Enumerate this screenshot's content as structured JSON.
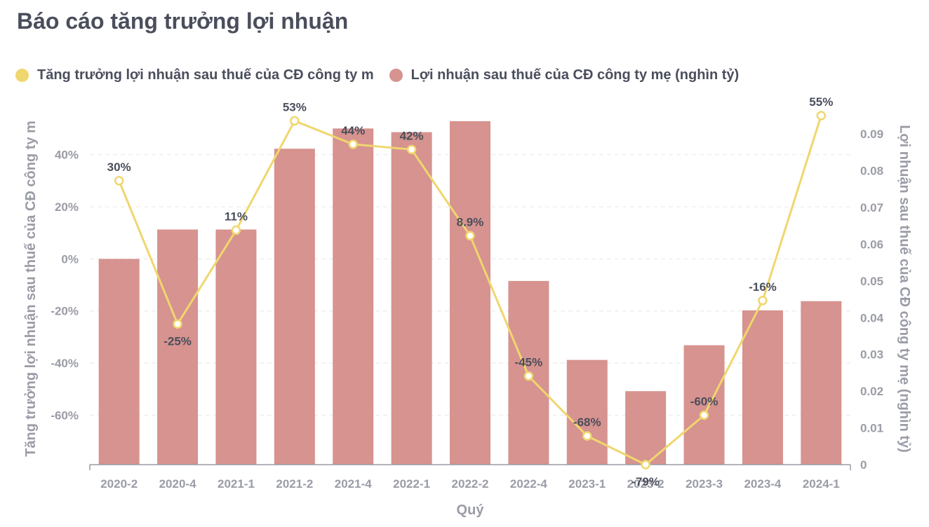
{
  "title": "Báo cáo tăng trưởng lợi nhuận",
  "colors": {
    "bar": "#d6938f",
    "line": "#f0d66e",
    "text": "#4a4e5c",
    "axis": "#9a9ca6",
    "grid": "#e6e6e6"
  },
  "chart_data": {
    "type": "bar",
    "categories": [
      "2020-2",
      "2020-4",
      "2021-1",
      "2021-2",
      "2021-4",
      "2022-1",
      "2022-2",
      "2022-4",
      "2023-1",
      "2023-2",
      "2023-3",
      "2023-4",
      "2024-1"
    ],
    "series": [
      {
        "name": "Tăng trưởng lợi nhuận sau thuế của CĐ công ty m",
        "type": "line",
        "axis": "left",
        "values": [
          30,
          -25,
          11,
          53,
          44,
          42,
          8.9,
          -45,
          -68,
          -79,
          -60,
          -16,
          55
        ],
        "labels": [
          "30%",
          "-25%",
          "11%",
          "53%",
          "44%",
          "42%",
          "8.9%",
          "-45%",
          "-68%",
          "-79%",
          "-60%",
          "-16%",
          "55%"
        ]
      },
      {
        "name": "Lợi nhuận sau thuế của CĐ công ty mẹ (nghìn tỷ)",
        "type": "bar",
        "axis": "right",
        "values": [
          0.056,
          0.064,
          0.064,
          0.086,
          0.0915,
          0.0905,
          0.0935,
          0.05,
          0.0285,
          0.02,
          0.0325,
          0.042,
          0.0445
        ]
      }
    ],
    "xlabel": "Quý",
    "ylabel_left": "Tăng trưởng lợi nhuận sau thuế của CĐ công ty m",
    "ylabel_right": "Lợi nhuận sau thuế của CĐ công ty mẹ (nghìn tỷ)",
    "ylim_left": [
      -79,
      55
    ],
    "ylim_right": [
      0,
      0.095
    ],
    "yticks_left": [
      40,
      20,
      0,
      -20,
      -40,
      -60
    ],
    "yticks_left_labels": [
      "40%",
      "20%",
      "0%",
      "-20%",
      "-40%",
      "-60%"
    ],
    "yticks_right": [
      0,
      0.01,
      0.02,
      0.03,
      0.04,
      0.05,
      0.06,
      0.07,
      0.08,
      0.09
    ],
    "yticks_right_labels": [
      "0",
      "0.01",
      "0.02",
      "0.03",
      "0.04",
      "0.05",
      "0.06",
      "0.07",
      "0.08",
      "0.09"
    ],
    "grid": true,
    "legend": "top-left"
  }
}
